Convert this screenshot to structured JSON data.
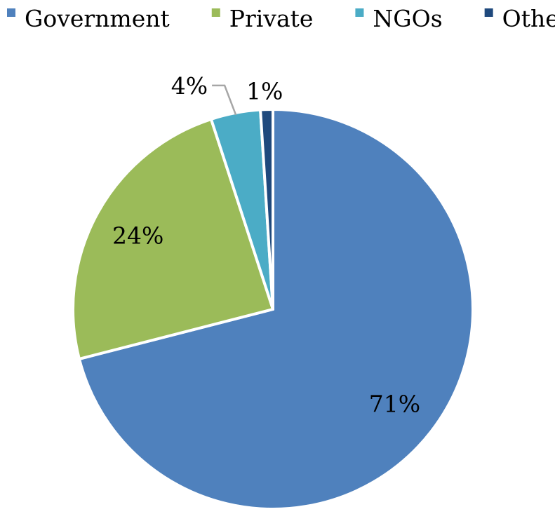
{
  "chart_data": {
    "type": "pie",
    "categories": [
      "Government",
      "Private",
      "NGOs",
      "Other"
    ],
    "values": [
      71,
      24,
      4,
      1
    ],
    "value_labels": [
      "71%",
      "24%",
      "4%",
      "1%"
    ],
    "colors": [
      "#4f81bd",
      "#9bbb59",
      "#4bacc6",
      "#1f497d"
    ],
    "legend": "top"
  }
}
